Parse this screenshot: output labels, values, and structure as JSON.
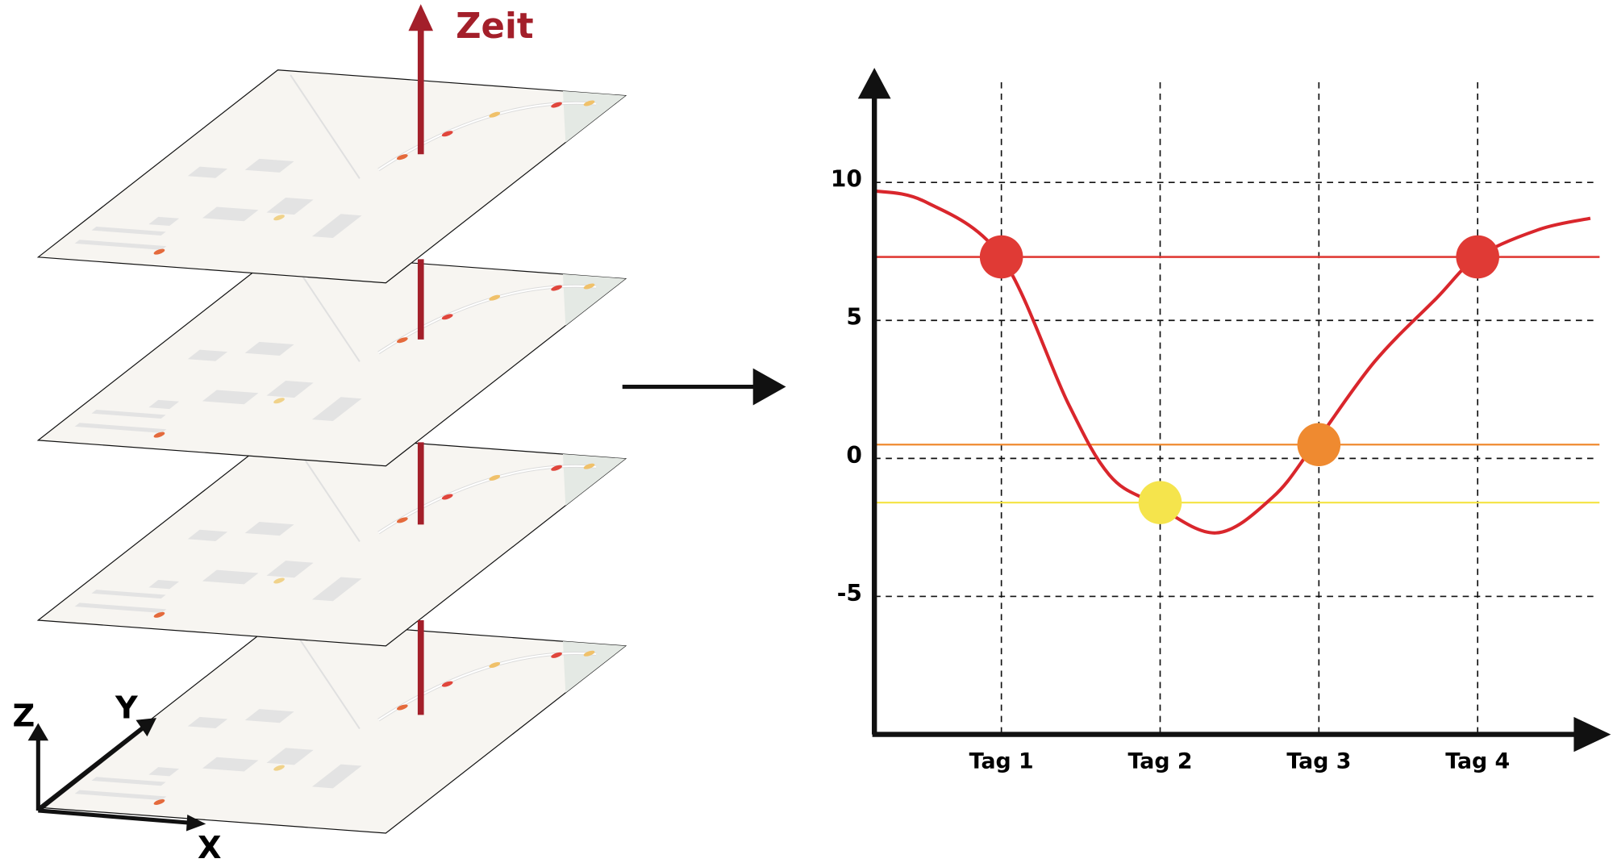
{
  "diagram": {
    "time_label": "Zeit",
    "axis_labels": {
      "x": "X",
      "y": "Y",
      "z": "Z"
    }
  },
  "chart_data": {
    "type": "line",
    "x": [
      0.19,
      0.52,
      1,
      1.42,
      1.68,
      1.95,
      2.35,
      2.71,
      2.97,
      3.35,
      3.74,
      4,
      4.39,
      4.71
    ],
    "values": [
      9.7,
      9.3,
      7.3,
      2.0,
      -0.6,
      -1.6,
      -2.7,
      -1.4,
      0.5,
      3.5,
      5.8,
      7.3,
      8.3,
      8.7
    ],
    "color": "#d9262c",
    "markers": {
      "x": [
        1,
        2,
        3,
        4
      ],
      "values": [
        7.3,
        -1.6,
        0.5,
        7.3
      ],
      "colors": [
        "#e03a35",
        "#f5e44c",
        "#ef8a30",
        "#e03a35"
      ]
    },
    "xlim": [
      0.2,
      4.8
    ],
    "ylim": [
      -10,
      14
    ],
    "xticks": [
      {
        "value": 1,
        "label": "Tag 1"
      },
      {
        "value": 2,
        "label": "Tag 2"
      },
      {
        "value": 3,
        "label": "Tag 3"
      },
      {
        "value": 4,
        "label": "Tag 4"
      }
    ],
    "yticks": [
      10,
      5,
      0,
      -5
    ],
    "grid": true
  }
}
